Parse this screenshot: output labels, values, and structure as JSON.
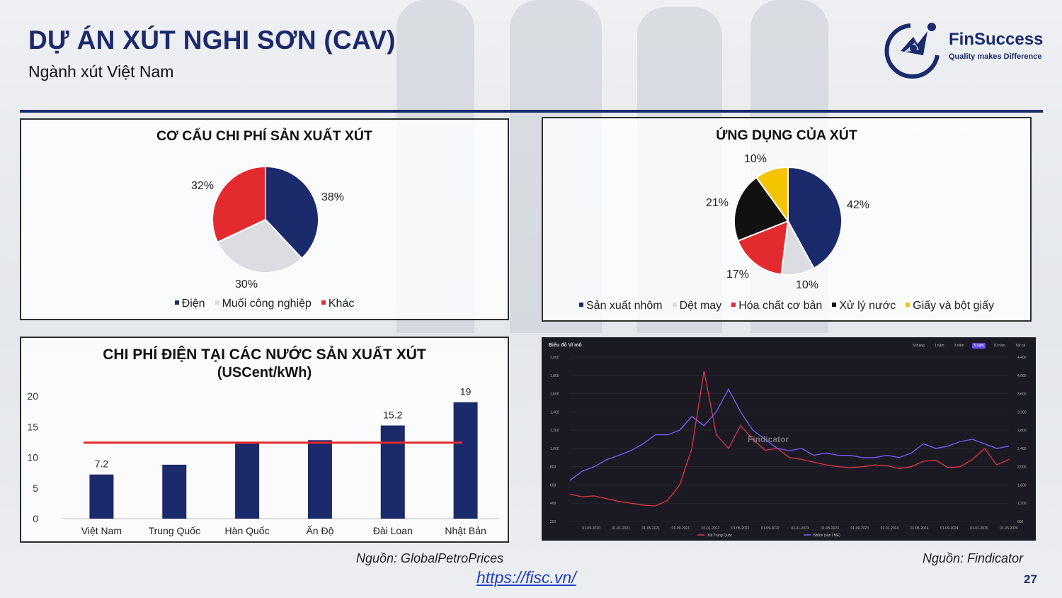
{
  "header": {
    "title": "DỰ ÁN XÚT NGHI SƠN (CAV)",
    "subtitle": "Ngành xút Việt Nam",
    "logo_name_part1": "Fin",
    "logo_name_part2": "Success",
    "logo_tagline": "Quality makes Difference"
  },
  "colors": {
    "navy": "#1b2a6b",
    "red": "#e32b2f",
    "grey": "#dcdde3",
    "black": "#111111",
    "gold": "#f5c400",
    "purple": "#7b5cff"
  },
  "chart_data": [
    {
      "type": "pie",
      "title": "CƠ CẤU CHI PHÍ SẢN XUẤT XÚT",
      "labels": [
        "Điện",
        "Muối công nghiệp",
        "Khác"
      ],
      "values": [
        38,
        30,
        32
      ],
      "value_labels": [
        "38%",
        "30%",
        "32%"
      ],
      "colors": [
        "#1b2a6b",
        "#dcdde3",
        "#e32b2f"
      ],
      "legend": "bottom"
    },
    {
      "type": "pie",
      "title": "ỨNG DỤNG CỦA XÚT",
      "labels": [
        "Sản xuất nhôm",
        "Dệt may",
        "Hóa chất cơ bản",
        "Xử lý nước",
        "Giấy và bột giấy"
      ],
      "values": [
        42,
        10,
        17,
        21,
        10
      ],
      "value_labels": [
        "42%",
        "10%",
        "17%",
        "21%",
        "10%"
      ],
      "colors": [
        "#1b2a6b",
        "#dcdde3",
        "#e32b2f",
        "#111111",
        "#f5c400"
      ],
      "legend": "bottom"
    },
    {
      "type": "bar",
      "title_line1": "CHI PHÍ ĐIỆN TẠI CÁC NƯỚC SẢN XUẤT XÚT",
      "title_line2": "(USCent/kWh)",
      "categories": [
        "Việt Nam",
        "Trung Quốc",
        "Hàn Quốc",
        "Ấn Độ",
        "Đài Loan",
        "Nhật Bản"
      ],
      "values": [
        7.2,
        8.8,
        12.5,
        12.8,
        15.2,
        19
      ],
      "value_labels": [
        "7.2",
        "",
        "",
        "",
        "15.2",
        "19"
      ],
      "yticks": [
        "0",
        "5",
        "10",
        "15",
        "20"
      ],
      "ylim": [
        0,
        20
      ],
      "reference_line": 12.4,
      "bar_color": "#1b2a6b",
      "line_color": "#e32b2f",
      "grid": false
    },
    {
      "type": "line",
      "title": "Biểu đồ Vĩ mô",
      "tabs": [
        "6 tháng",
        "1 năm",
        "3 năm",
        "5 năm",
        "10 năm",
        "Tất cả"
      ],
      "active_tab": "5 năm",
      "x_ticks": [
        "01-09-2020",
        "01-01-2021",
        "01-05-2021",
        "01-09-2021",
        "01-01-2022",
        "01-05-2022",
        "01-09-2022",
        "01-01-2023",
        "01-05-2023",
        "01-09-2023",
        "01-01-2024",
        "01-05-2024",
        "01-09-2024",
        "01-01-2025",
        "01-05-2025"
      ],
      "y_left_ticks": [
        "200",
        "400",
        "600",
        "800",
        "1,000",
        "1,200",
        "1,400",
        "1,600",
        "1,800",
        "2,000"
      ],
      "y_right_ticks": [
        "800",
        "1,200",
        "1,600",
        "2,000",
        "2,400",
        "2,800",
        "3,200",
        "3,600",
        "4,000",
        "4,400"
      ],
      "ylim_left": [
        200,
        2000
      ],
      "ylim_right": [
        800,
        4400
      ],
      "watermark": "Findicator",
      "series": [
        {
          "name": "Xút Trung Quốc",
          "axis": "left",
          "color": "#e0344a",
          "values": [
            500,
            470,
            480,
            450,
            420,
            400,
            380,
            370,
            430,
            600,
            1000,
            1850,
            1150,
            1000,
            1250,
            1100,
            980,
            1000,
            900,
            880,
            850,
            820,
            800,
            790,
            800,
            820,
            810,
            780,
            800,
            860,
            870,
            790,
            800,
            880,
            1000,
            820,
            880
          ]
        },
        {
          "name": "Nhôm (sàn LME)",
          "axis": "right",
          "color": "#7b5cff",
          "values": [
            1700,
            1900,
            2000,
            2150,
            2250,
            2350,
            2500,
            2700,
            2700,
            2800,
            3100,
            2900,
            3200,
            3700,
            3200,
            2800,
            2600,
            2400,
            2350,
            2400,
            2250,
            2300,
            2250,
            2250,
            2200,
            2200,
            2250,
            2200,
            2300,
            2500,
            2400,
            2450,
            2550,
            2600,
            2500,
            2400,
            2450
          ]
        }
      ]
    }
  ],
  "sources": {
    "left": "Nguồn: GlobalPetroPrices",
    "right": "Nguồn: Findicator"
  },
  "footer": {
    "link": "https://fisc.vn/",
    "page": "27"
  }
}
